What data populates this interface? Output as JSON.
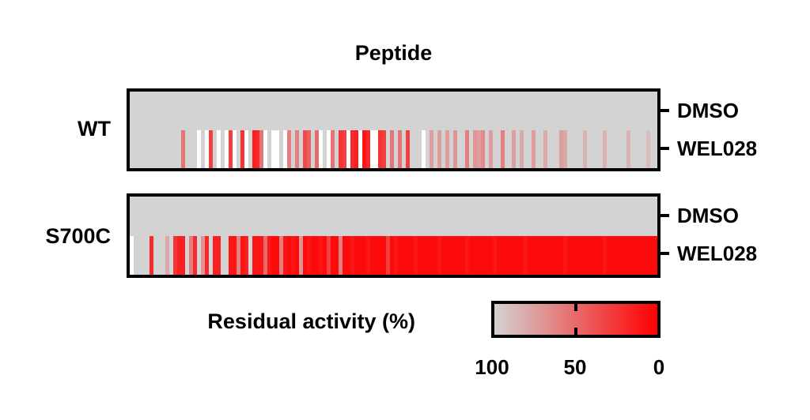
{
  "title": "Peptide",
  "panels": [
    {
      "label": "WT",
      "row_labels": [
        "DMSO",
        "WEL028"
      ]
    },
    {
      "label": "S700C",
      "row_labels": [
        "DMSO",
        "WEL028"
      ]
    }
  ],
  "legend": {
    "label": "Residual activity (%)",
    "tick_labels": [
      "100",
      "50",
      "0"
    ]
  },
  "colors": {
    "high_activity_gray": "#d3d3d3",
    "zero_activity_red": "#ff0000",
    "missing_white": "#ffffff",
    "border_black": "#000000"
  },
  "chart_data": {
    "type": "heatmap",
    "title": "Peptide",
    "value_label": "Residual activity (%)",
    "value_domain": [
      0,
      100
    ],
    "colormap": {
      "high_color": "#d3d3d3",
      "low_color": "#ff0000",
      "missing_color": "#ffffff",
      "high": 100,
      "low": 0
    },
    "legend": {
      "ticks": [
        100,
        50,
        0
      ],
      "position": "bottom-right"
    },
    "n_columns": 134,
    "note": "Columns are individual peptide substrates; values estimated from stripe colors (100 = gray, 0 = red); null = white (missing).",
    "panels": [
      {
        "name": "WT",
        "rows": [
          {
            "name": "DMSO",
            "values": [
              100,
              100,
              100,
              100,
              100,
              100,
              100,
              100,
              100,
              100,
              100,
              100,
              100,
              100,
              100,
              100,
              100,
              100,
              100,
              100,
              100,
              100,
              100,
              100,
              100,
              100,
              100,
              100,
              100,
              100,
              100,
              100,
              100,
              100,
              100,
              100,
              100,
              100,
              100,
              100,
              100,
              100,
              100,
              100,
              100,
              100,
              100,
              100,
              100,
              100,
              100,
              100,
              100,
              100,
              100,
              100,
              100,
              100,
              100,
              100,
              100,
              100,
              100,
              100,
              100,
              100,
              100,
              100,
              100,
              100,
              100,
              100,
              100,
              100,
              100,
              100,
              100,
              100,
              100,
              100,
              100,
              100,
              100,
              100,
              100,
              100,
              100,
              100,
              100,
              100,
              100,
              100,
              100,
              100,
              100,
              100,
              100,
              100,
              100,
              100,
              100,
              100,
              100,
              100,
              100,
              100,
              100,
              100,
              100,
              100,
              100,
              100,
              100,
              100,
              100,
              100,
              100,
              100,
              100,
              100,
              100,
              100,
              100,
              100,
              100,
              100,
              100,
              100,
              100,
              100,
              100,
              100,
              100,
              100
            ]
          },
          {
            "name": "WEL028",
            "values": [
              100,
              100,
              100,
              100,
              100,
              100,
              100,
              100,
              100,
              100,
              100,
              100,
              100,
              55,
              100,
              100,
              100,
              null,
              100,
              null,
              30,
              100,
              null,
              100,
              null,
              30,
              null,
              100,
              25,
              null,
              100,
              15,
              20,
              55,
              null,
              100,
              null,
              null,
              100,
              null,
              60,
              100,
              60,
              100,
              35,
              45,
              100,
              50,
              null,
              100,
              null,
              55,
              100,
              25,
              30,
              null,
              20,
              15,
              null,
              10,
              20,
              null,
              null,
              25,
              30,
              100,
              55,
              100,
              55,
              100,
              30,
              100,
              100,
              100,
              null,
              100,
              75,
              100,
              75,
              100,
              75,
              100,
              70,
              100,
              100,
              60,
              100,
              70,
              75,
              65,
              100,
              75,
              100,
              100,
              60,
              100,
              100,
              75,
              100,
              80,
              100,
              100,
              75,
              100,
              100,
              80,
              100,
              100,
              100,
              75,
              80,
              100,
              100,
              100,
              100,
              85,
              100,
              100,
              100,
              100,
              85,
              100,
              100,
              100,
              100,
              100,
              85,
              100,
              100,
              100,
              100,
              90,
              100,
              100
            ]
          }
        ]
      },
      {
        "name": "S700C",
        "rows": [
          {
            "name": "DMSO",
            "values": [
              100,
              100,
              100,
              100,
              100,
              100,
              100,
              100,
              100,
              100,
              100,
              100,
              100,
              100,
              100,
              100,
              100,
              100,
              100,
              100,
              100,
              100,
              100,
              100,
              100,
              100,
              100,
              100,
              100,
              100,
              100,
              100,
              100,
              100,
              100,
              100,
              100,
              100,
              100,
              100,
              100,
              100,
              100,
              100,
              100,
              100,
              100,
              100,
              100,
              100,
              100,
              100,
              100,
              100,
              100,
              100,
              100,
              100,
              100,
              100,
              100,
              100,
              100,
              100,
              100,
              100,
              100,
              100,
              100,
              100,
              100,
              100,
              100,
              100,
              100,
              100,
              100,
              100,
              100,
              100,
              100,
              100,
              100,
              100,
              100,
              100,
              100,
              100,
              100,
              100,
              100,
              100,
              100,
              100,
              100,
              100,
              100,
              100,
              100,
              100,
              100,
              100,
              100,
              100,
              100,
              100,
              100,
              100,
              100,
              100,
              100,
              100,
              100,
              100,
              100,
              100,
              100,
              100,
              100,
              100,
              100,
              100,
              100,
              100,
              100,
              100,
              100,
              100,
              100,
              100,
              100,
              100,
              100,
              100
            ]
          },
          {
            "name": "WEL028",
            "values": [
              null,
              100,
              100,
              100,
              100,
              20,
              100,
              100,
              100,
              80,
              100,
              25,
              15,
              15,
              100,
              60,
              20,
              100,
              70,
              20,
              100,
              15,
              15,
              100,
              100,
              10,
              10,
              60,
              10,
              15,
              100,
              10,
              10,
              10,
              50,
              10,
              5,
              5,
              60,
              10,
              5,
              10,
              5,
              70,
              5,
              10,
              5,
              5,
              10,
              5,
              30,
              5,
              5,
              60,
              5,
              5,
              10,
              5,
              5,
              5,
              10,
              5,
              5,
              5,
              5,
              30,
              5,
              10,
              5,
              5,
              5,
              5,
              10,
              5,
              5,
              5,
              5,
              5,
              10,
              5,
              5,
              5,
              5,
              5,
              5,
              10,
              5,
              5,
              5,
              5,
              5,
              5,
              10,
              5,
              5,
              5,
              5,
              5,
              5,
              5,
              10,
              5,
              5,
              5,
              5,
              5,
              5,
              5,
              5,
              5,
              10,
              5,
              5,
              5,
              5,
              5,
              5,
              5,
              5,
              5,
              10,
              5,
              5,
              5,
              5,
              5,
              5,
              5,
              5,
              5,
              5,
              5,
              5,
              5
            ]
          }
        ]
      }
    ]
  }
}
